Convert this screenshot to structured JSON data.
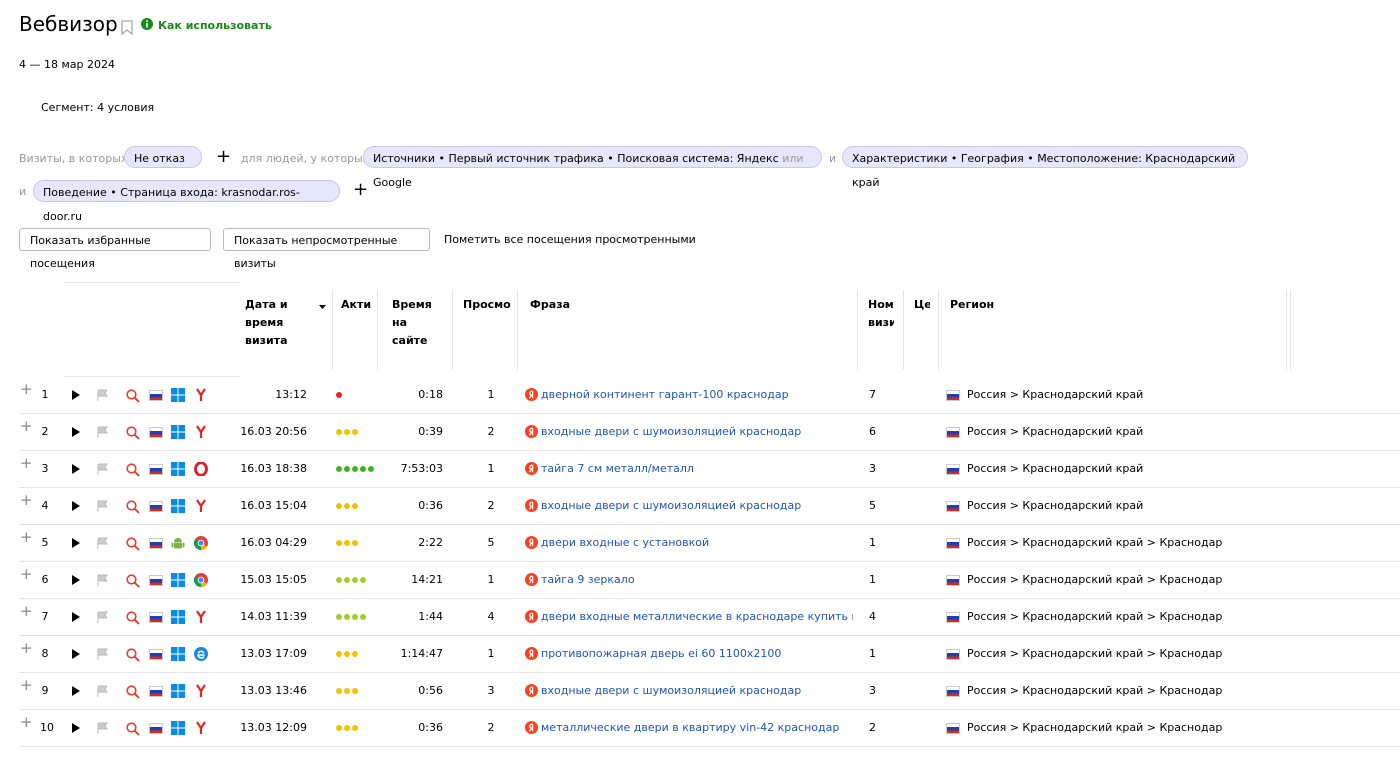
{
  "header": {
    "title": "Вебвизор",
    "help_link": "Как использовать",
    "period": "4 — 18 мар 2024",
    "segment": "Сегмент: 4 условия"
  },
  "filter": {
    "visits_label": "Визиты, в которых",
    "visits_chip": "Не отказ",
    "people_label": "для людей, у которых",
    "and": "и",
    "chips": [
      {
        "text": "Источники • Первый источник трафика • Поисковая система: Яндекс",
        "or": "или",
        "text2": "Google"
      },
      {
        "text": "Характеристики • География • Местоположение: Краснодарский край"
      },
      {
        "text": "Поведение • Страница входа: krasnodar.ros-door.ru"
      }
    ]
  },
  "actions": {
    "buttons": [
      "Показать избранные посещения",
      "Показать непросмотренные визиты"
    ],
    "link": "Пометить все посещения просмотренными"
  },
  "table": {
    "columns": [
      "Дата и время визита",
      "Акти",
      "Время на сайте",
      "Просмо",
      "Фраза",
      "Ном визи",
      "Це",
      "Регион"
    ],
    "rows": [
      {
        "n": 1,
        "date": "13:12",
        "activity": 1,
        "duration": "0:18",
        "views": 1,
        "phrase": "дверной континент гарант-100 краснодар",
        "visit": 7,
        "region": "Россия > Краснодарский край",
        "os": "windows",
        "browser": "yandex"
      },
      {
        "n": 2,
        "date": "16.03 20:56",
        "activity": 3,
        "duration": "0:39",
        "views": 2,
        "phrase": "входные двери с шумоизоляцией краснодар",
        "visit": 6,
        "region": "Россия > Краснодарский край",
        "os": "windows",
        "browser": "yandex"
      },
      {
        "n": 3,
        "date": "16.03 18:38",
        "activity": 5,
        "duration": "7:53:03",
        "views": 1,
        "phrase": "тайга 7 см металл/металл",
        "visit": 3,
        "region": "Россия > Краснодарский край",
        "os": "windows",
        "browser": "opera"
      },
      {
        "n": 4,
        "date": "16.03 15:04",
        "activity": 3,
        "duration": "0:36",
        "views": 2,
        "phrase": "входные двери с шумоизоляцией краснодар",
        "visit": 5,
        "region": "Россия > Краснодарский край",
        "os": "windows",
        "browser": "yandex"
      },
      {
        "n": 5,
        "date": "16.03 04:29",
        "activity": 3,
        "duration": "2:22",
        "views": 5,
        "phrase": "двери входные с установкой",
        "visit": 1,
        "region": "Россия > Краснодарский край > Краснодар",
        "os": "android",
        "browser": "chrome"
      },
      {
        "n": 6,
        "date": "15.03 15:05",
        "activity": 4,
        "duration": "14:21",
        "views": 1,
        "phrase": "тайга 9 зеркало",
        "visit": 1,
        "region": "Россия > Краснодарский край > Краснодар",
        "os": "windows",
        "browser": "chrome"
      },
      {
        "n": 7,
        "date": "14.03 11:39",
        "activity": 4,
        "duration": "1:44",
        "views": 4,
        "phrase": "двери входные металлические в краснодаре купить нед...",
        "visit": 4,
        "region": "Россия > Краснодарский край > Краснодар",
        "os": "windows",
        "browser": "yandex"
      },
      {
        "n": 8,
        "date": "13.03 17:09",
        "activity": 3,
        "duration": "1:14:47",
        "views": 1,
        "phrase": "противопожарная дверь ei 60 1100х2100",
        "visit": 1,
        "region": "Россия > Краснодарский край > Краснодар",
        "os": "windows",
        "browser": "edge"
      },
      {
        "n": 9,
        "date": "13.03 13:46",
        "activity": 3,
        "duration": "0:56",
        "views": 3,
        "phrase": "входные двери с шумоизоляцией краснодар",
        "visit": 3,
        "region": "Россия > Краснодарский край > Краснодар",
        "os": "windows",
        "browser": "yandex"
      },
      {
        "n": 10,
        "date": "13.03 12:09",
        "activity": 3,
        "duration": "0:36",
        "views": 2,
        "phrase": "металлические двери в квартиру vin-42 краснодар",
        "visit": 2,
        "region": "Россия > Краснодарский край > Краснодар",
        "os": "windows",
        "browser": "yandex"
      }
    ]
  }
}
